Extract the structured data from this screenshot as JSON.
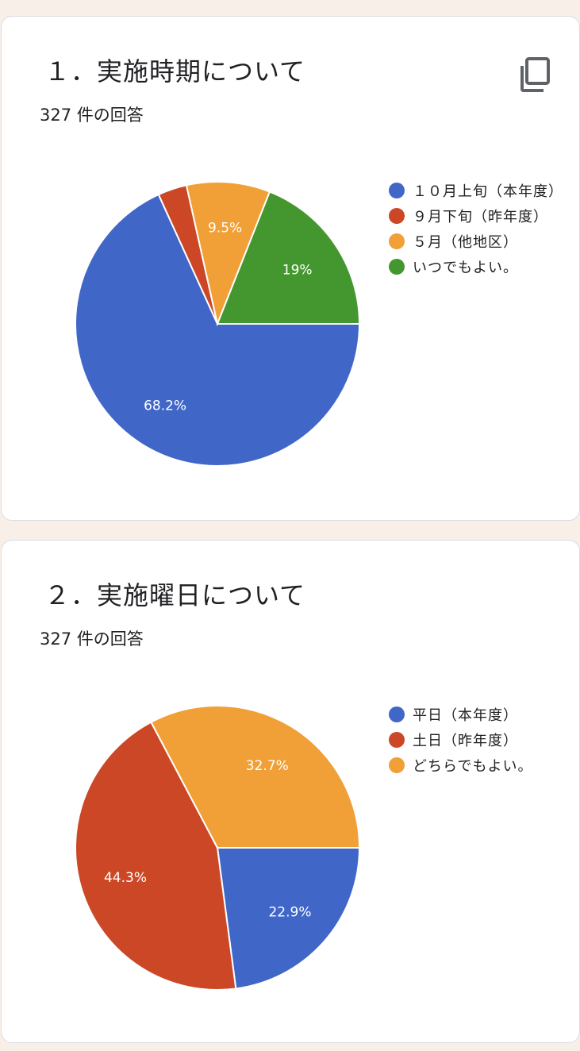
{
  "questions": [
    {
      "title": "１．実施時期について",
      "response_count": "327 件の回答",
      "legend": [
        {
          "label": "１０月上旬（本年度）",
          "color": "#4066c8"
        },
        {
          "label": "９月下旬（昨年度）",
          "color": "#cc4726"
        },
        {
          "label": "５月（他地区）",
          "color": "#f0a037"
        },
        {
          "label": "いつでもよい。",
          "color": "#44972e"
        }
      ]
    },
    {
      "title": "２．実施曜日について",
      "response_count": "327 件の回答",
      "legend": [
        {
          "label": "平日（本年度）",
          "color": "#4066c8"
        },
        {
          "label": "土日（昨年度）",
          "color": "#cc4726"
        },
        {
          "label": "どちらでもよい。",
          "color": "#f0a037"
        }
      ]
    }
  ],
  "icons": {
    "copy": "copy-icon"
  },
  "chart_data": [
    {
      "type": "pie",
      "title": "１．実施時期について",
      "categories": [
        "１０月上旬（本年度）",
        "９月下旬（昨年度）",
        "５月（他地区）",
        "いつでもよい。"
      ],
      "values": [
        68.2,
        3.3,
        9.5,
        19.0
      ],
      "labels": [
        "68.2%",
        "",
        "9.5%",
        "19%"
      ],
      "colors": [
        "#4066c8",
        "#cc4726",
        "#f0a037",
        "#44972e"
      ],
      "legend": "right"
    },
    {
      "type": "pie",
      "title": "２．実施曜日について",
      "categories": [
        "平日（本年度）",
        "土日（昨年度）",
        "どちらでもよい。"
      ],
      "values": [
        22.9,
        44.3,
        32.7
      ],
      "labels": [
        "22.9%",
        "44.3%",
        "32.7%"
      ],
      "colors": [
        "#4066c8",
        "#cc4726",
        "#f0a037"
      ],
      "legend": "right"
    }
  ]
}
